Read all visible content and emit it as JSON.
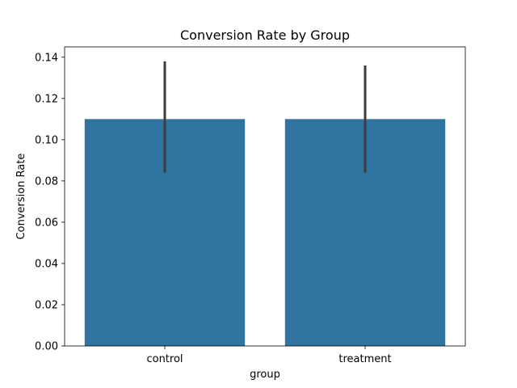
{
  "chart_data": {
    "type": "bar",
    "title": "Conversion Rate by Group",
    "xlabel": "group",
    "ylabel": "Conversion Rate",
    "categories": [
      "control",
      "treatment"
    ],
    "values": [
      0.11,
      0.11
    ],
    "error_bars": [
      {
        "low": 0.084,
        "high": 0.138
      },
      {
        "low": 0.084,
        "high": 0.136
      }
    ],
    "ylim": [
      0,
      0.145
    ],
    "yticks": [
      0,
      0.02,
      0.04,
      0.06,
      0.08,
      0.1,
      0.12,
      0.14
    ],
    "ytick_labels": [
      "0.00",
      "0.02",
      "0.04",
      "0.06",
      "0.08",
      "0.10",
      "0.12",
      "0.14"
    ],
    "grid": false,
    "colors": {
      "bar": "#3274a1",
      "error_bar": "#3d3d3d",
      "axis": "#000000"
    }
  }
}
